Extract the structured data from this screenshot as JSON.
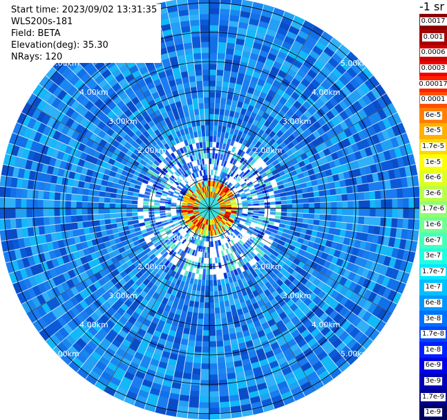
{
  "info": {
    "start_time": "Start time: 2023/09/02 13:31:35",
    "site": "WLS200s-181",
    "field": "Field: BETA",
    "elevation": "Elevation(deg): 35.30",
    "nrays": "NRays: 120"
  },
  "unit_label": "-1 sr",
  "range_rings": [
    "1.00km",
    "2.00km",
    "3.00km",
    "4.00km",
    "5.00km"
  ],
  "legend": [
    {
      "label": "0.0017",
      "color": "#8b0000"
    },
    {
      "label": "0.001",
      "color": "#a80000"
    },
    {
      "label": "0.0006",
      "color": "#cc0000"
    },
    {
      "label": "0.0003",
      "color": "#ee0000"
    },
    {
      "label": "0.00017",
      "color": "#ff2000"
    },
    {
      "label": "0.0001",
      "color": "#ff5000"
    },
    {
      "label": "6e-5",
      "color": "#ff8000"
    },
    {
      "label": "3e-5",
      "color": "#ffb000"
    },
    {
      "label": "1.7e-5",
      "color": "#ffd800"
    },
    {
      "label": "1e-5",
      "color": "#ffff00"
    },
    {
      "label": "6e-6",
      "color": "#e0ff20"
    },
    {
      "label": "3e-6",
      "color": "#b8ff48"
    },
    {
      "label": "1.7e-6",
      "color": "#90ff70"
    },
    {
      "label": "1e-6",
      "color": "#70ff90"
    },
    {
      "label": "6e-7",
      "color": "#48ffb8"
    },
    {
      "label": "3e-7",
      "color": "#20ffe0"
    },
    {
      "label": "1.7e-7",
      "color": "#00e8ff"
    },
    {
      "label": "1e-7",
      "color": "#00c0ff"
    },
    {
      "label": "6e-8",
      "color": "#0098ff"
    },
    {
      "label": "3e-8",
      "color": "#0070ff"
    },
    {
      "label": "1.7e-8",
      "color": "#0048ff"
    },
    {
      "label": "1e-8",
      "color": "#0020ff"
    },
    {
      "label": "6e-9",
      "color": "#0000e8"
    },
    {
      "label": "3e-9",
      "color": "#0000b8"
    },
    {
      "label": "1.7e-9",
      "color": "#000090"
    },
    {
      "label": "1e-9",
      "color": "#000060"
    }
  ]
}
